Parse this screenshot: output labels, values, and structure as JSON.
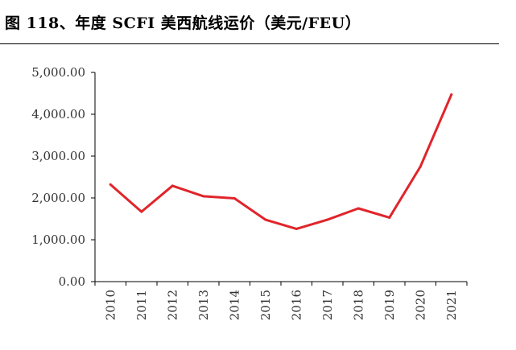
{
  "figure": {
    "title": "图 118、年度 SCFI 美西航线运价（美元/FEU）"
  },
  "chart_data": {
    "type": "line",
    "title": "图 118、年度 SCFI 美西航线运价（美元/FEU）",
    "xlabel": "",
    "ylabel": "",
    "categories": [
      "2010",
      "2011",
      "2012",
      "2013",
      "2014",
      "2015",
      "2016",
      "2017",
      "2018",
      "2019",
      "2020",
      "2021"
    ],
    "series": [
      {
        "values": [
          2320,
          1670,
          2290,
          2040,
          1990,
          1480,
          1260,
          1480,
          1750,
          1530,
          2750,
          4470
        ]
      }
    ],
    "ylim": [
      0,
      5000
    ],
    "yticks": [
      "0.00",
      "1,000.00",
      "2,000.00",
      "3,000.00",
      "4,000.00",
      "5,000.00"
    ],
    "line_color": "#e0252b",
    "grid": false,
    "legend": "none"
  }
}
